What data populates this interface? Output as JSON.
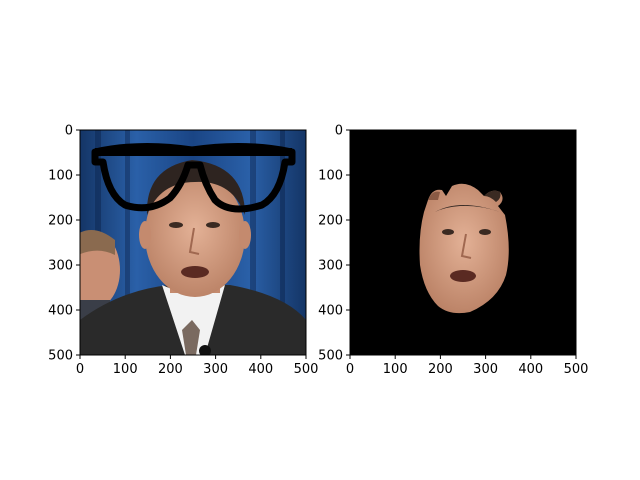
{
  "figure": {
    "background": "#ffffff"
  },
  "chart_data": [
    {
      "type": "image",
      "panel": "left",
      "title": "",
      "xlabel": "",
      "ylabel": "",
      "xlim": [
        0,
        500
      ],
      "ylim": [
        500,
        0
      ],
      "xticks": [
        0,
        100,
        200,
        300,
        400,
        500
      ],
      "yticks": [
        0,
        100,
        200,
        300,
        400,
        500
      ],
      "xtick_labels": [
        "0",
        "100",
        "200",
        "300",
        "400",
        "500"
      ],
      "ytick_labels": [
        "0",
        "100",
        "200",
        "300",
        "400",
        "500"
      ],
      "grid": false,
      "content": "photo of a man speaking with black eyeglasses overlay near the top",
      "colors": {
        "background_curtain": "#1f4d8f",
        "curtain_dark": "#143566",
        "suit": "#2a2a2a",
        "shirt": "#f2f2f2",
        "skin": "#d9a184",
        "hair": "#2e2420",
        "glasses": "#000000"
      }
    },
    {
      "type": "image",
      "panel": "right",
      "title": "",
      "xlabel": "",
      "ylabel": "",
      "xlim": [
        0,
        500
      ],
      "ylim": [
        500,
        0
      ],
      "xticks": [
        0,
        100,
        200,
        300,
        400,
        500
      ],
      "yticks": [
        0,
        100,
        200,
        300,
        400,
        500
      ],
      "xtick_labels": [
        "0",
        "100",
        "200",
        "300",
        "400",
        "500"
      ],
      "ytick_labels": [
        "0",
        "100",
        "200",
        "300",
        "400",
        "500"
      ],
      "grid": false,
      "content": "masked face region on black background",
      "colors": {
        "background": "#000000",
        "skin": "#d9a184",
        "hair": "#2e2420"
      }
    }
  ]
}
